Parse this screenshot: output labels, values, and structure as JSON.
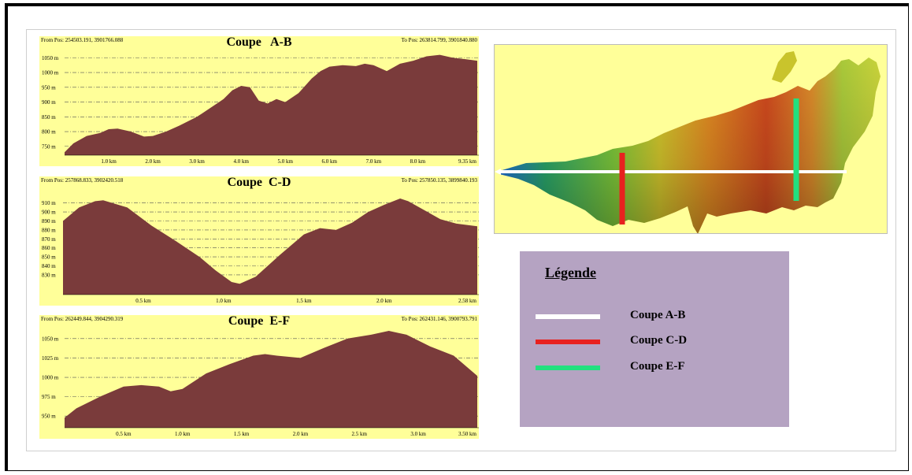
{
  "chart_data": [
    {
      "type": "area",
      "title": "Coupe   A-B",
      "from_pos": "From Pos: 254503.191, 3901766.088",
      "to_pos": "To Pos: 263814.799, 3901840.880",
      "x_unit": "km",
      "xlim": [
        0,
        9.35
      ],
      "ylim": [
        720,
        1075
      ],
      "ytick_labels": [
        "1050 m",
        "1000 m",
        "950 m",
        "900 m",
        "850 m",
        "800 m",
        "750 m"
      ],
      "yticks": [
        1050,
        1000,
        950,
        900,
        850,
        800,
        750
      ],
      "xtick_labels": [
        "1.0 km",
        "2.0 km",
        "3.0 km",
        "4.0 km",
        "5.0 km",
        "6.0 km",
        "7.0 km",
        "8.0 km",
        "9.35 km"
      ],
      "xticks": [
        1,
        2,
        3,
        4,
        5,
        6,
        7,
        8,
        9.35
      ],
      "grid": true,
      "fill_color": "#7a3b3b",
      "background_color": "#ffff99",
      "x": [
        0,
        0.2,
        0.5,
        0.8,
        1.0,
        1.2,
        1.5,
        1.8,
        2.0,
        2.3,
        2.6,
        3.0,
        3.3,
        3.6,
        3.8,
        4.0,
        4.2,
        4.4,
        4.6,
        4.8,
        5.0,
        5.3,
        5.6,
        5.8,
        6.0,
        6.3,
        6.6,
        6.8,
        7.0,
        7.3,
        7.6,
        7.9,
        8.2,
        8.5,
        8.8,
        9.1,
        9.35
      ],
      "y": [
        730,
        760,
        785,
        795,
        808,
        810,
        800,
        783,
        785,
        800,
        820,
        850,
        880,
        910,
        940,
        955,
        950,
        905,
        895,
        910,
        900,
        930,
        980,
        1005,
        1020,
        1025,
        1022,
        1030,
        1025,
        1005,
        1030,
        1040,
        1055,
        1060,
        1050,
        1045,
        1040
      ]
    },
    {
      "type": "area",
      "title": "Coupe  C-D",
      "from_pos": "From Pos: 257868.833, 3902420.518",
      "to_pos": "To Pos: 257850.135, 3899840.193",
      "x_unit": "km",
      "xlim": [
        0,
        2.58
      ],
      "ylim": [
        808,
        922
      ],
      "ytick_labels": [
        "910 m",
        "900 m",
        "890 m",
        "880 m",
        "870 m",
        "860 m",
        "850 m",
        "840 m",
        "830 m"
      ],
      "yticks": [
        910,
        900,
        890,
        880,
        870,
        860,
        850,
        840,
        830
      ],
      "xtick_labels": [
        "0.5 km",
        "1.0 km",
        "1.5 km",
        "2.0 km",
        "2.58 km"
      ],
      "xticks": [
        0.5,
        1.0,
        1.5,
        2.0,
        2.58
      ],
      "grid": true,
      "fill_color": "#7a3b3b",
      "background_color": "#ffff99",
      "x": [
        0,
        0.1,
        0.2,
        0.25,
        0.4,
        0.55,
        0.7,
        0.85,
        0.95,
        1.05,
        1.1,
        1.2,
        1.35,
        1.5,
        1.6,
        1.7,
        1.8,
        1.9,
        2.0,
        2.1,
        2.15,
        2.25,
        2.35,
        2.45,
        2.58
      ],
      "y": [
        890,
        905,
        912,
        913,
        905,
        885,
        868,
        850,
        835,
        822,
        820,
        828,
        852,
        875,
        882,
        880,
        888,
        900,
        908,
        915,
        912,
        902,
        892,
        887,
        884
      ]
    },
    {
      "type": "area",
      "title": "Coupe  E-F",
      "from_pos": "From Pos: 262449.844, 3904290.319",
      "to_pos": "To Pos: 262431.146, 3900793.791",
      "x_unit": "km",
      "xlim": [
        0,
        3.5
      ],
      "ylim": [
        935,
        1062
      ],
      "ytick_labels": [
        "1050 m",
        "1025 m",
        "1000 m",
        "975 m",
        "950 m"
      ],
      "yticks": [
        1050,
        1025,
        1000,
        975,
        950
      ],
      "xtick_labels": [
        "0.5 km",
        "1.0 km",
        "1.5 km",
        "2.0 km",
        "2.5 km",
        "3.0 km",
        "3.50 km"
      ],
      "xticks": [
        0.5,
        1.0,
        1.5,
        2.0,
        2.5,
        3.0,
        3.5
      ],
      "grid": true,
      "fill_color": "#7a3b3b",
      "background_color": "#ffff99",
      "x": [
        0,
        0.1,
        0.3,
        0.5,
        0.65,
        0.8,
        0.9,
        1.0,
        1.2,
        1.4,
        1.6,
        1.7,
        1.8,
        2.0,
        2.2,
        2.4,
        2.6,
        2.75,
        2.9,
        3.1,
        3.3,
        3.5
      ],
      "y": [
        948,
        960,
        975,
        988,
        990,
        988,
        982,
        985,
        1005,
        1017,
        1028,
        1030,
        1028,
        1025,
        1038,
        1050,
        1055,
        1060,
        1055,
        1040,
        1028,
        1002
      ]
    }
  ],
  "legend": {
    "title": "Légende",
    "items": [
      {
        "label": "Coupe A-B",
        "color": "#ffffff"
      },
      {
        "label": "Coupe C-D",
        "color": "#e8211f"
      },
      {
        "label": "Coupe E-F",
        "color": "#22e07f"
      }
    ]
  }
}
